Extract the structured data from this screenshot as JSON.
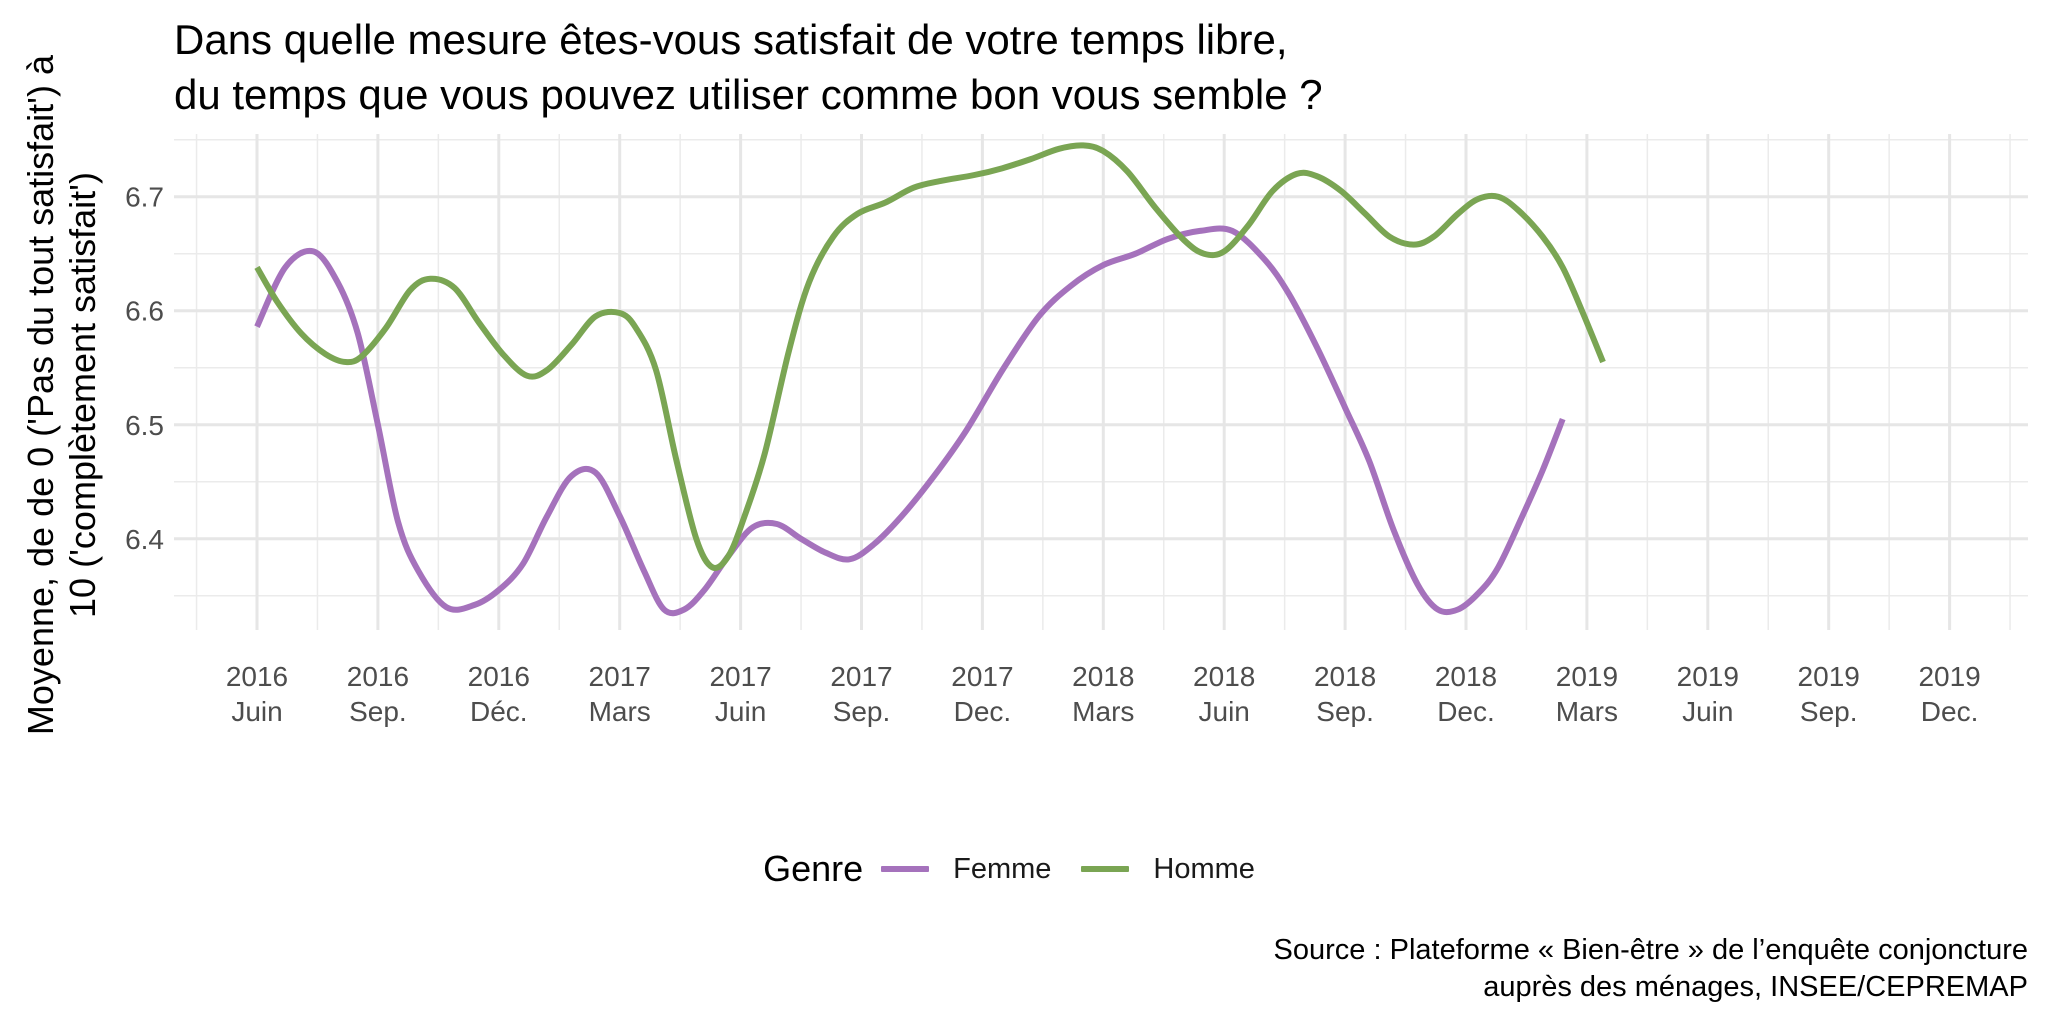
{
  "chart_data": {
    "type": "line",
    "title": [
      "Dans quelle mesure êtes-vous satisfait de votre temps libre,",
      "du temps que vous pouvez utiliser comme bon vous semble ?"
    ],
    "ylabel": [
      "Moyenne, de de 0 ('Pas du tout satisfait') à",
      "10 ('complètement satisfait')"
    ],
    "xlabel": "",
    "ylim": [
      6.32,
      6.755
    ],
    "y_ticks": [
      6.4,
      6.5,
      6.6,
      6.7
    ],
    "y_tick_labels": [
      "6.4",
      "6.5",
      "6.6",
      "6.7"
    ],
    "x_ticks": [
      {
        "year": "2016",
        "month": "Juin"
      },
      {
        "year": "2016",
        "month": "Sep."
      },
      {
        "year": "2016",
        "month": "Déc."
      },
      {
        "year": "2017",
        "month": "Mars"
      },
      {
        "year": "2017",
        "month": "Juin"
      },
      {
        "year": "2017",
        "month": "Sep."
      },
      {
        "year": "2017",
        "month": "Dec."
      },
      {
        "year": "2018",
        "month": "Mars"
      },
      {
        "year": "2018",
        "month": "Juin"
      },
      {
        "year": "2018",
        "month": "Sep."
      },
      {
        "year": "2018",
        "month": "Dec."
      },
      {
        "year": "2019",
        "month": "Mars"
      },
      {
        "year": "2019",
        "month": "Juin"
      },
      {
        "year": "2019",
        "month": "Sep."
      },
      {
        "year": "2019",
        "month": "Dec."
      }
    ],
    "x_unit": "months since June 2016",
    "legend_title": "Genre",
    "legend_position": "bottom",
    "grid": true,
    "series": [
      {
        "name": "Femme",
        "color": "#a572bc",
        "points": [
          [
            0,
            6.586
          ],
          [
            0.7,
            6.638
          ],
          [
            1.4,
            6.652
          ],
          [
            2.0,
            6.625
          ],
          [
            2.5,
            6.58
          ],
          [
            3.0,
            6.5
          ],
          [
            3.5,
            6.415
          ],
          [
            4.0,
            6.372
          ],
          [
            4.7,
            6.34
          ],
          [
            5.4,
            6.342
          ],
          [
            6.0,
            6.355
          ],
          [
            6.6,
            6.378
          ],
          [
            7.2,
            6.42
          ],
          [
            7.8,
            6.455
          ],
          [
            8.4,
            6.458
          ],
          [
            9.0,
            6.42
          ],
          [
            9.6,
            6.372
          ],
          [
            10.1,
            6.338
          ],
          [
            10.6,
            6.338
          ],
          [
            11.1,
            6.355
          ],
          [
            11.7,
            6.385
          ],
          [
            12.3,
            6.41
          ],
          [
            12.9,
            6.413
          ],
          [
            13.5,
            6.4
          ],
          [
            14.1,
            6.388
          ],
          [
            14.7,
            6.382
          ],
          [
            15.3,
            6.395
          ],
          [
            16.0,
            6.42
          ],
          [
            16.8,
            6.455
          ],
          [
            17.6,
            6.495
          ],
          [
            18.5,
            6.548
          ],
          [
            19.4,
            6.595
          ],
          [
            20.2,
            6.622
          ],
          [
            21.0,
            6.64
          ],
          [
            21.8,
            6.65
          ],
          [
            22.6,
            6.663
          ],
          [
            23.4,
            6.67
          ],
          [
            24.2,
            6.67
          ],
          [
            25.0,
            6.645
          ],
          [
            25.6,
            6.615
          ],
          [
            26.3,
            6.568
          ],
          [
            27.0,
            6.515
          ],
          [
            27.6,
            6.468
          ],
          [
            28.2,
            6.408
          ],
          [
            28.8,
            6.36
          ],
          [
            29.3,
            6.338
          ],
          [
            29.8,
            6.338
          ],
          [
            30.3,
            6.352
          ],
          [
            30.8,
            6.375
          ],
          [
            31.4,
            6.42
          ],
          [
            31.9,
            6.46
          ],
          [
            32.4,
            6.505
          ]
        ]
      },
      {
        "name": "Homme",
        "color": "#7aa553",
        "points": [
          [
            0,
            6.638
          ],
          [
            0.5,
            6.608
          ],
          [
            1.1,
            6.58
          ],
          [
            1.7,
            6.562
          ],
          [
            2.2,
            6.555
          ],
          [
            2.6,
            6.56
          ],
          [
            3.2,
            6.585
          ],
          [
            3.8,
            6.618
          ],
          [
            4.3,
            6.628
          ],
          [
            4.9,
            6.62
          ],
          [
            5.5,
            6.59
          ],
          [
            6.1,
            6.562
          ],
          [
            6.7,
            6.543
          ],
          [
            7.2,
            6.548
          ],
          [
            7.8,
            6.57
          ],
          [
            8.4,
            6.595
          ],
          [
            9.0,
            6.598
          ],
          [
            9.4,
            6.585
          ],
          [
            9.9,
            6.548
          ],
          [
            10.4,
            6.47
          ],
          [
            10.9,
            6.4
          ],
          [
            11.3,
            6.375
          ],
          [
            11.7,
            6.385
          ],
          [
            12.1,
            6.42
          ],
          [
            12.6,
            6.475
          ],
          [
            13.2,
            6.565
          ],
          [
            13.7,
            6.625
          ],
          [
            14.3,
            6.665
          ],
          [
            14.9,
            6.685
          ],
          [
            15.6,
            6.695
          ],
          [
            16.3,
            6.708
          ],
          [
            17.0,
            6.714
          ],
          [
            17.8,
            6.719
          ],
          [
            18.5,
            6.725
          ],
          [
            19.2,
            6.733
          ],
          [
            19.9,
            6.742
          ],
          [
            20.5,
            6.745
          ],
          [
            21.0,
            6.74
          ],
          [
            21.6,
            6.722
          ],
          [
            22.3,
            6.69
          ],
          [
            23.0,
            6.662
          ],
          [
            23.5,
            6.65
          ],
          [
            24.0,
            6.652
          ],
          [
            24.6,
            6.675
          ],
          [
            25.2,
            6.705
          ],
          [
            25.8,
            6.72
          ],
          [
            26.3,
            6.718
          ],
          [
            26.9,
            6.705
          ],
          [
            27.5,
            6.685
          ],
          [
            28.1,
            6.665
          ],
          [
            28.7,
            6.658
          ],
          [
            29.2,
            6.665
          ],
          [
            29.8,
            6.685
          ],
          [
            30.3,
            6.698
          ],
          [
            30.8,
            6.7
          ],
          [
            31.3,
            6.688
          ],
          [
            31.9,
            6.665
          ],
          [
            32.4,
            6.638
          ],
          [
            32.9,
            6.598
          ],
          [
            33.4,
            6.555
          ]
        ]
      }
    ],
    "caption": [
      "Source : Plateforme « Bien-être » de l’enquête conjoncture",
      "auprès des ménages, INSEE/CEPREMAP"
    ]
  }
}
